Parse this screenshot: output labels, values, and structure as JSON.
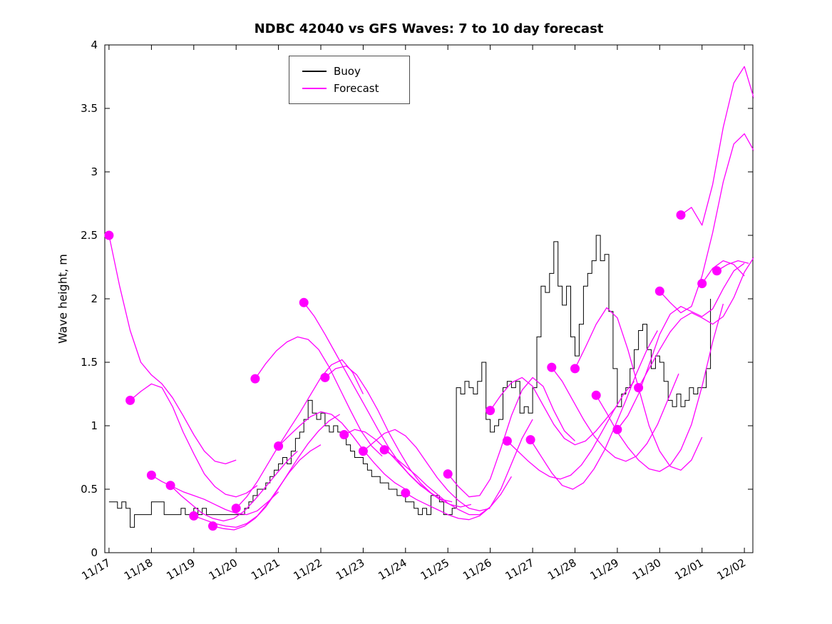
{
  "chart_data": {
    "type": "line",
    "title": "NDBC 42040 vs GFS Waves: 7 to 10 day forecast",
    "xlabel": "",
    "ylabel": "Wave height, m",
    "xlim": [
      -0.1,
      15.2
    ],
    "ylim": [
      0,
      4
    ],
    "grid": false,
    "yticks": [
      0,
      0.5,
      1,
      1.5,
      2,
      2.5,
      3,
      3.5,
      4
    ],
    "ytick_labels": [
      "0",
      "0.5",
      "1",
      "1.5",
      "2",
      "2.5",
      "3",
      "3.5",
      "4"
    ],
    "xticks": [
      0,
      1,
      2,
      3,
      4,
      5,
      6,
      7,
      8,
      9,
      10,
      11,
      12,
      13,
      14,
      15
    ],
    "xtick_labels": [
      "11/17",
      "11/18",
      "11/19",
      "11/20",
      "11/21",
      "11/22",
      "11/23",
      "11/24",
      "11/25",
      "11/26",
      "11/27",
      "11/28",
      "11/29",
      "11/30",
      "12/01",
      "12/02"
    ],
    "legend": {
      "position": "top-center",
      "entries": [
        {
          "label": "Buoy",
          "color": "#000000"
        },
        {
          "label": "Forecast",
          "color": "#FF00FF"
        }
      ]
    },
    "series": {
      "buoy": {
        "name": "Buoy",
        "color": "#000000",
        "x0": 0,
        "dx": 0.1,
        "values": [
          0.4,
          0.4,
          0.35,
          0.4,
          0.35,
          0.2,
          0.3,
          0.3,
          0.3,
          0.3,
          0.4,
          0.4,
          0.4,
          0.3,
          0.3,
          0.3,
          0.3,
          0.35,
          0.3,
          0.3,
          0.35,
          0.3,
          0.35,
          0.3,
          0.3,
          0.3,
          0.3,
          0.3,
          0.3,
          0.3,
          0.3,
          0.3,
          0.35,
          0.4,
          0.45,
          0.5,
          0.5,
          0.55,
          0.6,
          0.65,
          0.7,
          0.75,
          0.7,
          0.8,
          0.9,
          0.95,
          1.05,
          1.2,
          1.1,
          1.05,
          1.1,
          1.0,
          0.95,
          1.0,
          0.95,
          0.9,
          0.85,
          0.8,
          0.75,
          0.75,
          0.7,
          0.65,
          0.6,
          0.6,
          0.55,
          0.55,
          0.5,
          0.5,
          0.45,
          0.45,
          0.4,
          0.4,
          0.35,
          0.3,
          0.35,
          0.3,
          0.45,
          0.45,
          0.4,
          0.3,
          0.3,
          0.35,
          1.3,
          1.25,
          1.35,
          1.3,
          1.25,
          1.35,
          1.5,
          1.05,
          0.95,
          1.0,
          1.05,
          1.3,
          1.35,
          1.3,
          1.35,
          1.1,
          1.15,
          1.1,
          1.3,
          1.7,
          2.1,
          2.05,
          2.2,
          2.45,
          2.1,
          1.95,
          2.1,
          1.7,
          1.55,
          1.8,
          2.1,
          2.2,
          2.3,
          2.5,
          2.3,
          2.35,
          1.9,
          1.45,
          1.15,
          1.25,
          1.3,
          1.45,
          1.6,
          1.75,
          1.8,
          1.6,
          1.45,
          1.55,
          1.5,
          1.35,
          1.2,
          1.15,
          1.25,
          1.15,
          1.2,
          1.3,
          1.25,
          1.3,
          1.3,
          1.45,
          2.0
        ]
      },
      "forecasts": {
        "name": "Forecast",
        "color": "#FF00FF",
        "dx": 0.25,
        "segments": [
          {
            "x0": 0.0,
            "values": [
              2.5,
              2.1,
              1.75,
              1.5,
              1.4,
              1.33,
              1.22,
              1.08,
              0.93,
              0.8,
              0.72,
              0.7,
              0.73
            ]
          },
          {
            "x0": 0.5,
            "values": [
              1.2,
              1.27,
              1.33,
              1.3,
              1.15,
              0.95,
              0.78,
              0.62,
              0.52,
              0.46,
              0.44,
              0.47,
              0.53
            ]
          },
          {
            "x0": 1.0,
            "values": [
              0.61,
              0.56,
              0.52,
              0.48,
              0.45,
              0.42,
              0.38,
              0.34,
              0.31,
              0.3,
              0.33,
              0.4,
              0.48
            ]
          },
          {
            "x0": 1.45,
            "values": [
              0.53,
              0.45,
              0.38,
              0.31,
              0.27,
              0.25,
              0.27,
              0.33,
              0.42,
              0.52,
              0.62,
              0.72,
              0.8
            ]
          },
          {
            "x0": 2.0,
            "values": [
              0.29,
              0.26,
              0.23,
              0.21,
              0.2,
              0.23,
              0.29,
              0.39,
              0.51,
              0.63,
              0.73,
              0.8,
              0.85
            ]
          },
          {
            "x0": 2.45,
            "values": [
              0.21,
              0.19,
              0.18,
              0.21,
              0.27,
              0.36,
              0.48,
              0.61,
              0.74,
              0.86,
              0.96,
              1.04,
              1.09
            ]
          },
          {
            "x0": 3.0,
            "values": [
              0.35,
              0.44,
              0.56,
              0.7,
              0.84,
              0.97,
              1.1,
              1.24,
              1.38,
              1.48,
              1.52,
              1.42,
              1.25
            ]
          },
          {
            "x0": 3.45,
            "values": [
              1.37,
              1.49,
              1.59,
              1.66,
              1.7,
              1.68,
              1.6,
              1.46,
              1.29,
              1.12,
              0.96,
              0.84,
              0.76
            ]
          },
          {
            "x0": 4.0,
            "values": [
              0.84,
              0.92,
              1.0,
              1.07,
              1.11,
              1.09,
              1.02,
              0.92,
              0.81,
              0.71,
              0.62,
              0.55,
              0.5
            ]
          },
          {
            "x0": 4.6,
            "values": [
              1.97,
              1.86,
              1.72,
              1.57,
              1.42,
              1.27,
              1.12,
              0.97,
              0.83,
              0.71,
              0.61,
              0.53,
              0.47
            ]
          },
          {
            "x0": 5.1,
            "values": [
              1.38,
              1.45,
              1.47,
              1.4,
              1.27,
              1.12,
              0.95,
              0.8,
              0.66,
              0.55,
              0.47,
              0.42,
              0.4
            ]
          },
          {
            "x0": 5.55,
            "values": [
              0.93,
              0.97,
              0.95,
              0.89,
              0.81,
              0.72,
              0.63,
              0.55,
              0.48,
              0.42,
              0.38,
              0.36,
              0.38
            ]
          },
          {
            "x0": 6.0,
            "values": [
              0.8,
              0.87,
              0.94,
              0.97,
              0.92,
              0.83,
              0.71,
              0.59,
              0.49,
              0.41,
              0.35,
              0.33,
              0.35
            ]
          },
          {
            "x0": 6.5,
            "values": [
              0.81,
              0.75,
              0.68,
              0.61,
              0.53,
              0.46,
              0.39,
              0.34,
              0.3,
              0.3,
              0.36,
              0.46,
              0.6
            ]
          },
          {
            "x0": 7.0,
            "values": [
              0.47,
              0.42,
              0.38,
              0.34,
              0.3,
              0.27,
              0.26,
              0.29,
              0.36,
              0.5,
              0.7,
              0.9,
              1.05
            ]
          },
          {
            "x0": 8.0,
            "values": [
              0.62,
              0.52,
              0.44,
              0.45,
              0.58,
              0.82,
              1.08,
              1.28,
              1.38,
              1.31,
              1.12,
              0.96,
              0.88
            ]
          },
          {
            "x0": 9.0,
            "values": [
              1.12,
              1.24,
              1.34,
              1.38,
              1.31,
              1.16,
              1.01,
              0.9,
              0.85,
              0.88,
              0.96,
              1.06,
              1.16
            ]
          },
          {
            "x0": 9.4,
            "values": [
              0.88,
              0.8,
              0.72,
              0.65,
              0.6,
              0.58,
              0.61,
              0.69,
              0.81,
              0.96,
              1.11,
              1.25,
              1.35
            ]
          },
          {
            "x0": 9.95,
            "values": [
              0.89,
              0.76,
              0.63,
              0.53,
              0.5,
              0.55,
              0.66,
              0.81,
              1.0,
              1.2,
              1.41,
              1.6,
              1.75
            ]
          },
          {
            "x0": 10.45,
            "values": [
              1.46,
              1.35,
              1.2,
              1.05,
              0.92,
              0.82,
              0.75,
              0.72,
              0.76,
              0.86,
              1.01,
              1.21,
              1.41
            ]
          },
          {
            "x0": 11.0,
            "values": [
              1.45,
              1.62,
              1.8,
              1.93,
              1.85,
              1.6,
              1.3,
              1.0,
              0.8,
              0.68,
              0.65,
              0.73,
              0.91
            ]
          },
          {
            "x0": 11.5,
            "values": [
              1.24,
              1.1,
              0.95,
              0.83,
              0.73,
              0.66,
              0.64,
              0.69,
              0.81,
              1.01,
              1.31,
              1.66,
              1.96
            ]
          },
          {
            "x0": 12.0,
            "values": [
              0.97,
              1.08,
              1.25,
              1.48,
              1.72,
              1.88,
              1.94,
              1.9,
              1.86,
              1.92,
              2.08,
              2.22,
              2.28
            ]
          },
          {
            "x0": 12.5,
            "values": [
              1.3,
              1.45,
              1.6,
              1.74,
              1.84,
              1.89,
              1.85,
              1.8,
              1.86,
              2.01,
              2.21,
              2.34,
              2.28
            ]
          },
          {
            "x0": 13.0,
            "values": [
              2.06,
              1.97,
              1.89,
              1.94,
              2.18,
              2.52,
              2.92,
              3.22,
              3.3,
              3.15
            ]
          },
          {
            "x0": 13.5,
            "values": [
              2.66,
              2.72,
              2.58,
              2.9,
              3.35,
              3.7,
              3.83,
              3.55,
              3.25
            ]
          },
          {
            "x0": 14.0,
            "values": [
              2.12,
              2.24,
              2.3,
              2.27,
              2.18
            ]
          },
          {
            "x0": 14.35,
            "values": [
              2.22,
              2.27,
              2.3,
              2.28
            ]
          }
        ]
      }
    }
  }
}
